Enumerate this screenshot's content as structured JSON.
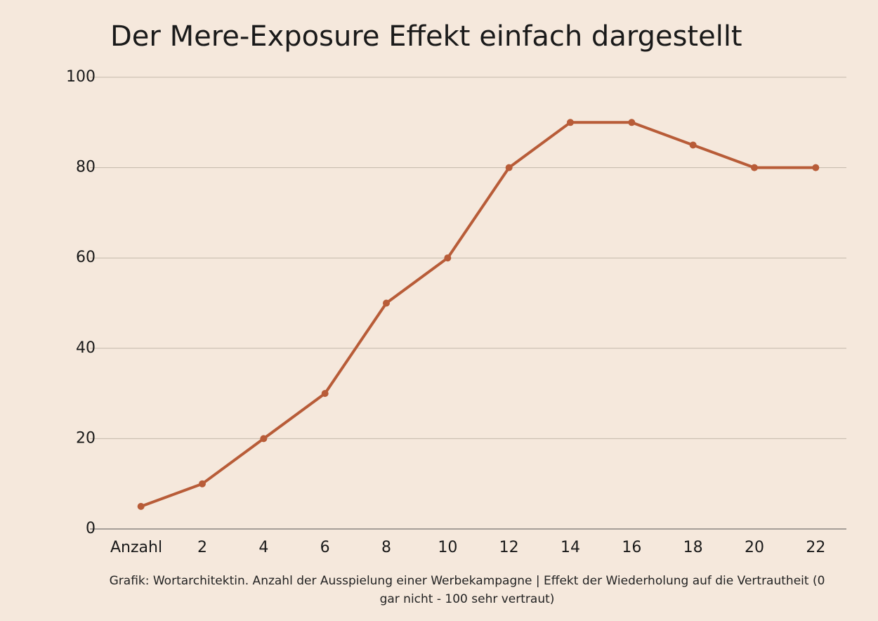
{
  "chart_data": {
    "type": "line",
    "title": "Der Mere-Exposure Effekt einfach dargestellt",
    "caption": "Grafik: Wortarchitektin. Anzahl der Ausspielung einer Werbekampagne | Effekt der Wiederholung auf die Vertrautheit (0 gar nicht - 100 sehr vertraut)",
    "categories": [
      "Anzahl",
      "2",
      "4",
      "6",
      "8",
      "10",
      "12",
      "14",
      "16",
      "18",
      "20",
      "22"
    ],
    "series": [
      {
        "color": "#b85c38",
        "values": [
          5,
          10,
          20,
          30,
          50,
          60,
          80,
          90,
          90,
          85,
          80,
          80
        ]
      }
    ],
    "ylim": [
      0,
      100
    ],
    "yticks": [
      0,
      20,
      40,
      60,
      80,
      100
    ],
    "grid": true
  }
}
